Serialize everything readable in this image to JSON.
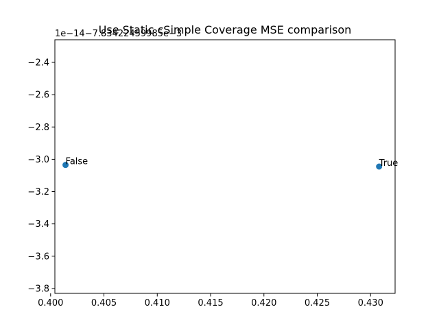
{
  "chart_data": {
    "type": "scatter",
    "title": "Use Static cSimple Coverage MSE comparison",
    "xlabel": "",
    "ylabel": "",
    "y_offset_label": "1e−14−7.83422459985e−3",
    "xlim": [
      0.4004,
      0.4323
    ],
    "ylim": [
      -3.83,
      -2.26
    ],
    "x_ticks": [
      0.4,
      0.405,
      0.41,
      0.415,
      0.42,
      0.425,
      0.43
    ],
    "x_tick_labels": [
      "0.400",
      "0.405",
      "0.410",
      "0.415",
      "0.420",
      "0.425",
      "0.430"
    ],
    "y_ticks": [
      -3.8,
      -3.6,
      -3.4,
      -3.2,
      -3.0,
      -2.8,
      -2.6,
      -2.4
    ],
    "y_tick_labels": [
      "−3.8",
      "−3.6",
      "−3.4",
      "−3.2",
      "−3.0",
      "−2.8",
      "−2.6",
      "−2.4"
    ],
    "grid": false,
    "marker_color": "#1f77b4",
    "points": [
      {
        "x": 0.4014,
        "y": -3.035,
        "label": "False"
      },
      {
        "x": 0.4308,
        "y": -3.045,
        "label": "True"
      }
    ]
  }
}
